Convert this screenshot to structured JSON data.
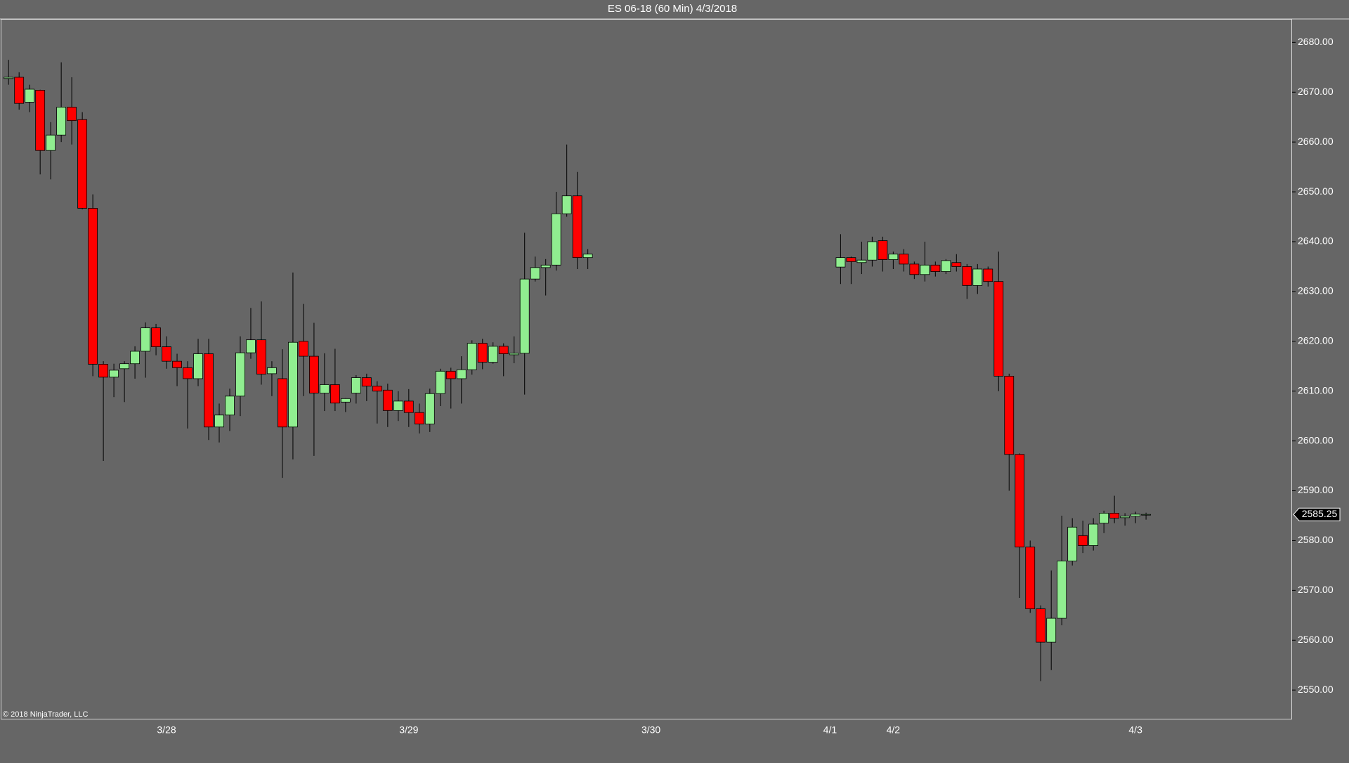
{
  "chart_data": {
    "type": "candlestick",
    "title": "ES 06-18 (60 Min)  4/3/2018",
    "annotation": "© 2018 NinjaTrader, LLC",
    "last_price": 2585.25,
    "up_color": "#90ee90",
    "down_color": "#ff0000",
    "wick_color": "#000000",
    "ylim": [
      2544.1,
      2684.7
    ],
    "yticks": [
      {
        "value": 2550,
        "label": "2550.00"
      },
      {
        "value": 2560,
        "label": "2560.00"
      },
      {
        "value": 2570,
        "label": "2570.00"
      },
      {
        "value": 2580,
        "label": "2580.00"
      },
      {
        "value": 2590,
        "label": "2590.00"
      },
      {
        "value": 2600,
        "label": "2600.00"
      },
      {
        "value": 2610,
        "label": "2610.00"
      },
      {
        "value": 2620,
        "label": "2620.00"
      },
      {
        "value": 2630,
        "label": "2630.00"
      },
      {
        "value": 2640,
        "label": "2640.00"
      },
      {
        "value": 2650,
        "label": "2650.00"
      },
      {
        "value": 2660,
        "label": "2660.00"
      },
      {
        "value": 2670,
        "label": "2670.00"
      },
      {
        "value": 2680,
        "label": "2680.00"
      }
    ],
    "categories": [
      null,
      null,
      null,
      null,
      null,
      null,
      null,
      null,
      null,
      null,
      null,
      null,
      null,
      null,
      null,
      "3/28",
      null,
      null,
      null,
      null,
      null,
      null,
      null,
      null,
      null,
      null,
      null,
      null,
      null,
      null,
      null,
      null,
      null,
      null,
      null,
      null,
      null,
      null,
      "3/29",
      null,
      null,
      null,
      null,
      null,
      null,
      null,
      null,
      null,
      null,
      null,
      null,
      null,
      null,
      null,
      null,
      null,
      null,
      null,
      null,
      null,
      null,
      "3/30",
      null,
      null,
      null,
      null,
      null,
      null,
      null,
      null,
      null,
      null,
      null,
      null,
      null,
      null,
      null,
      null,
      "4/1",
      null,
      null,
      null,
      null,
      null,
      "4/2",
      null,
      null,
      null,
      null,
      null,
      null,
      null,
      null,
      null,
      null,
      null,
      null,
      null,
      null,
      null,
      null,
      null,
      null,
      null,
      null,
      null,
      null,
      "4/3",
      null
    ],
    "open": [
      2672.75,
      2673,
      2668,
      2670.4,
      2658.3,
      2661.4,
      2667,
      2664.5,
      2646.7,
      2615.4,
      2612.8,
      2614.5,
      2615.5,
      2618,
      2622.7,
      2618.9,
      2616,
      2614.7,
      2612.5,
      2617.5,
      2602.8,
      2605.2,
      2609,
      2617.7,
      2620.3,
      2613.5,
      2612.5,
      2602.8,
      2620,
      2617,
      2609.6,
      2611.3,
      2607.8,
      2609.6,
      2612.7,
      2611,
      2610.2,
      2606.1,
      2608,
      2605.7,
      2603.4,
      2609.5,
      2614,
      2612.5,
      2614.3,
      2619.6,
      2615.8,
      2619,
      2617.3,
      2617.6,
      2632.5,
      2634.8,
      2635.3,
      2645.6,
      2649.2,
      2636.8,
      null,
      null,
      null,
      null,
      null,
      null,
      null,
      null,
      null,
      null,
      null,
      null,
      null,
      null,
      null,
      null,
      null,
      null,
      null,
      null,
      null,
      null,
      null,
      2634.9,
      2636.8,
      2635.8,
      2636.3,
      2640.2,
      2636.4,
      2637.5,
      2635.5,
      2633.4,
      2635.3,
      2634,
      2635.8,
      2635,
      2631.2,
      2634.5,
      2632,
      2613,
      2597.3,
      2578.7,
      2566.3,
      2559.6,
      2564.4,
      2575.9,
      2581,
      2579,
      2583.5,
      2585.5,
      2584.6,
      2584.9,
      2585.25
    ],
    "high": [
      2676.5,
      2674,
      2671.5,
      2670.5,
      2664,
      2676,
      2673,
      2666,
      2649.5,
      2616,
      2615.5,
      2616,
      2619,
      2623.8,
      2623.5,
      2621,
      2617.5,
      2616,
      2620.5,
      2620.5,
      2607.5,
      2610.5,
      2621,
      2626.7,
      2628,
      2616,
      2618.4,
      2633.8,
      2627.5,
      2623.7,
      2617.6,
      2618.5,
      2608.6,
      2613.2,
      2613.5,
      2612,
      2611.5,
      2610,
      2610.4,
      2607.5,
      2610.5,
      2614.5,
      2614.7,
      2617,
      2620.2,
      2620.5,
      2619.8,
      2619.6,
      2621,
      2641.8,
      2637,
      2636.5,
      2650,
      2659.5,
      2654,
      2638.5,
      null,
      null,
      null,
      null,
      null,
      null,
      null,
      null,
      null,
      null,
      null,
      null,
      null,
      null,
      null,
      null,
      null,
      null,
      null,
      null,
      null,
      null,
      null,
      2641.5,
      2637,
      2640,
      2641,
      2641,
      2638,
      2638.5,
      2636,
      2640,
      2636,
      2636.5,
      2637.5,
      2635.5,
      2635.5,
      2635,
      2638,
      2613.5,
      2597.5,
      2580,
      2567,
      2574,
      2585,
      2584.5,
      2584,
      2584.5,
      2586,
      2589,
      2585.5,
      2585.8,
      2585.6
    ],
    "low": [
      2671.5,
      2666.5,
      2666,
      2653.5,
      2652.5,
      2660,
      2659.5,
      2646.5,
      2613,
      2596,
      2608.8,
      2607.8,
      2612.5,
      2612.7,
      2617.2,
      2614.5,
      2611,
      2602.5,
      2611,
      2600.2,
      2599.7,
      2602,
      2605,
      2616.5,
      2611.3,
      2609,
      2592.6,
      2596.3,
      2609,
      2597,
      2606,
      2606,
      2605.8,
      2607.5,
      2608,
      2603.5,
      2602.8,
      2604,
      2602.8,
      2601.5,
      2601.8,
      2607,
      2606.5,
      2607.5,
      2613.3,
      2614.4,
      2615.5,
      2613,
      2615.6,
      2609.3,
      2632,
      2629.2,
      2634.2,
      2645,
      2634.5,
      2634.5,
      null,
      null,
      null,
      null,
      null,
      null,
      null,
      null,
      null,
      null,
      null,
      null,
      null,
      null,
      null,
      null,
      null,
      null,
      null,
      null,
      null,
      null,
      null,
      2631.5,
      2631.5,
      2633.5,
      2635,
      2634,
      2634.5,
      2634,
      2632.5,
      2632,
      2633,
      2633.5,
      2634,
      2628.5,
      2629.5,
      2631,
      2610,
      2590,
      2568.5,
      2565.5,
      2551.8,
      2554,
      2563,
      2575,
      2577.5,
      2578,
      2581.5,
      2583.5,
      2583,
      2583.5,
      2584.2
    ],
    "close": [
      2673,
      2667.75,
      2670.6,
      2658.3,
      2661.4,
      2667,
      2664.3,
      2646.7,
      2615.4,
      2612.8,
      2614.2,
      2615.5,
      2618,
      2622.7,
      2618.9,
      2616,
      2614.7,
      2612.5,
      2617.5,
      2602.8,
      2605.2,
      2609,
      2617.7,
      2620.3,
      2613.4,
      2614.7,
      2602.8,
      2619.8,
      2617,
      2609.6,
      2611.3,
      2607.6,
      2608.5,
      2612.7,
      2611,
      2610,
      2606.1,
      2608,
      2605.7,
      2603.4,
      2609.5,
      2614,
      2612.5,
      2614.3,
      2619.6,
      2615.8,
      2619,
      2617.5,
      2617.6,
      2632.5,
      2634.8,
      2635.3,
      2645.6,
      2649.2,
      2636.8,
      2637.5,
      null,
      null,
      null,
      null,
      null,
      null,
      null,
      null,
      null,
      null,
      null,
      null,
      null,
      null,
      null,
      null,
      null,
      null,
      null,
      null,
      null,
      null,
      null,
      2636.8,
      2636,
      2636.3,
      2640,
      2636.4,
      2637.5,
      2635.5,
      2633.4,
      2635.3,
      2634,
      2636.2,
      2635,
      2631.2,
      2634.5,
      2632,
      2613,
      2597.3,
      2578.7,
      2566.3,
      2559.6,
      2564.4,
      2575.9,
      2582.7,
      2579,
      2583.3,
      2585.5,
      2584.5,
      2584.9,
      2585.3,
      2585.25
    ]
  }
}
